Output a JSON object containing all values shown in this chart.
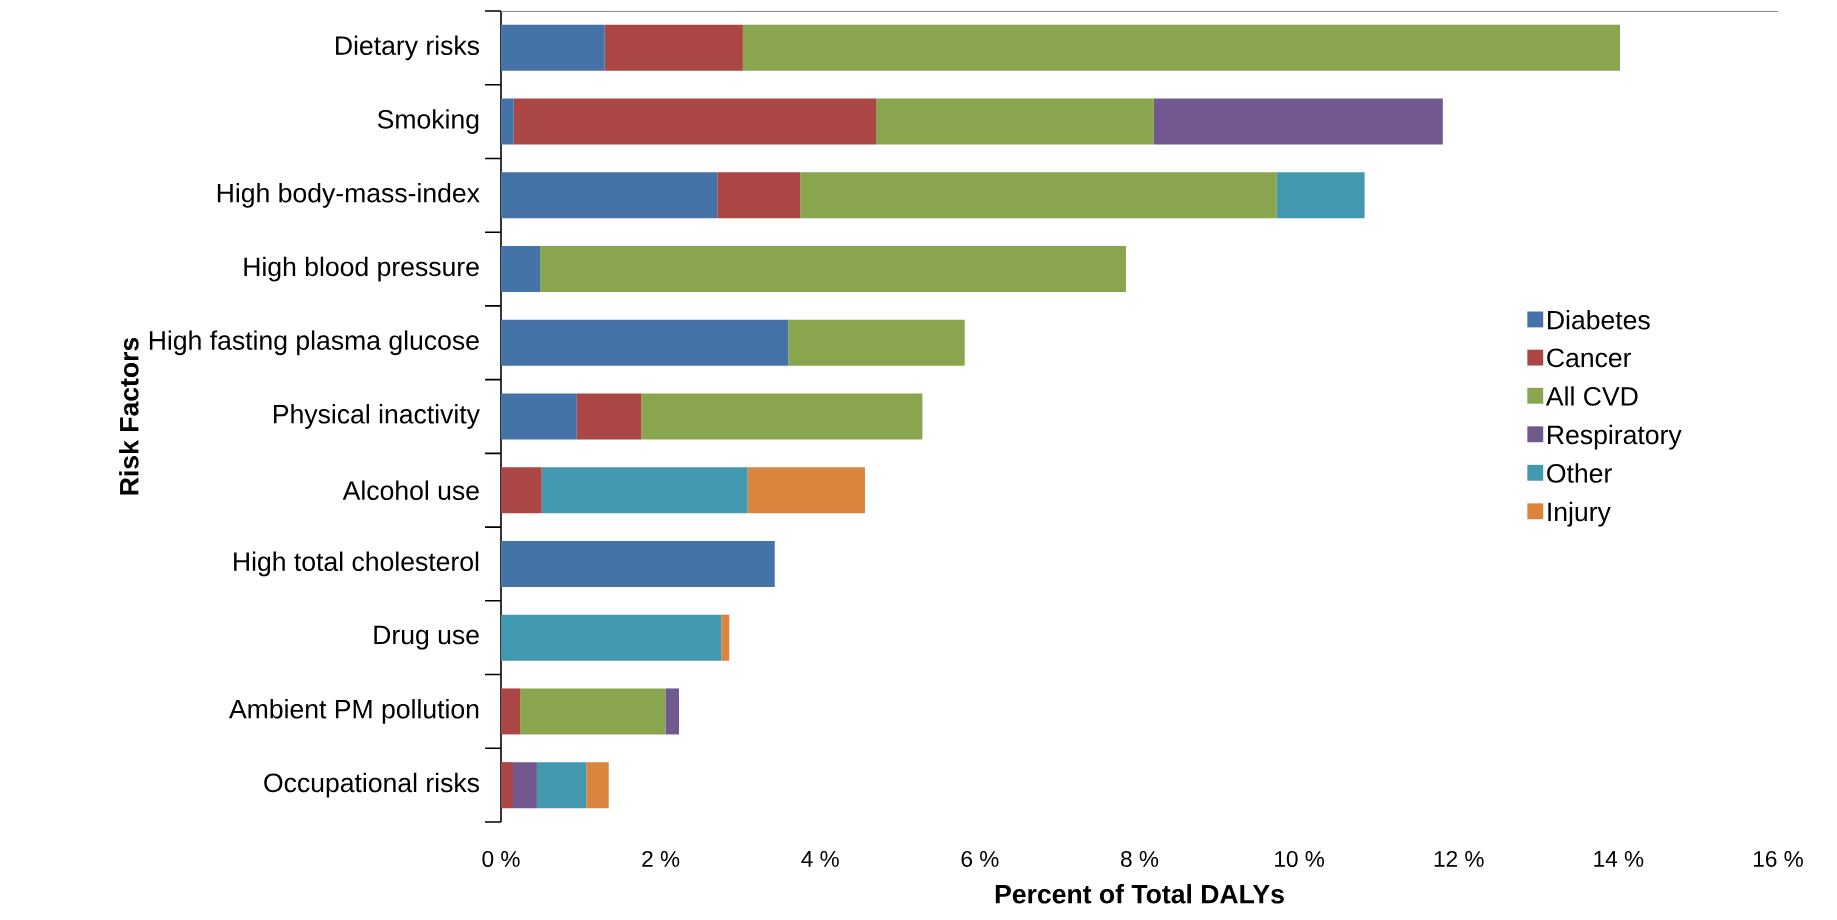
{
  "chart_data": {
    "type": "bar",
    "orientation": "horizontal",
    "stacked": true,
    "categories": [
      "Dietary risks",
      "Smoking",
      "High body-mass-index",
      "High blood pressure",
      "High fasting plasma glucose",
      "Physical inactivity",
      "Alcohol use",
      "High total cholesterol",
      "Drug use",
      "Ambient PM pollution",
      "Occupational risks"
    ],
    "series": [
      {
        "name": "Diabetes",
        "color": "#4572a7",
        "values": [
          1.3,
          0.16,
          2.71,
          0.49,
          3.6,
          0.95,
          0,
          3.43,
          0,
          0,
          0
        ]
      },
      {
        "name": "Cancer",
        "color": "#aa4643",
        "values": [
          1.73,
          4.54,
          1.04,
          0,
          0,
          0.81,
          0.51,
          0,
          0,
          0.24,
          0.15
        ]
      },
      {
        "name": "All CVD",
        "color": "#89a54e",
        "values": [
          10.99,
          3.48,
          5.97,
          7.34,
          2.21,
          3.52,
          0,
          0,
          0,
          1.82,
          0
        ]
      },
      {
        "name": "Respiratory",
        "color": "#71588f",
        "values": [
          0,
          3.62,
          0,
          0,
          0,
          0,
          0,
          0,
          0,
          0.17,
          0.3
        ]
      },
      {
        "name": "Other",
        "color": "#4198af",
        "values": [
          0,
          0,
          1.1,
          0,
          0,
          0,
          2.58,
          0,
          2.76,
          0,
          0.62
        ]
      },
      {
        "name": "Injury",
        "color": "#db843d",
        "values": [
          0,
          0,
          0,
          0,
          0,
          0,
          1.47,
          0,
          0.1,
          0,
          0.28
        ]
      }
    ],
    "xlim": [
      0,
      16
    ],
    "xticks": [
      {
        "value": 0,
        "label": "0 %"
      },
      {
        "value": 2,
        "label": "2 %"
      },
      {
        "value": 4,
        "label": "4 %"
      },
      {
        "value": 6,
        "label": "6 %"
      },
      {
        "value": 8,
        "label": "8 %"
      },
      {
        "value": 10,
        "label": "10 %"
      },
      {
        "value": 12,
        "label": "12 %"
      },
      {
        "value": 14,
        "label": "14 %"
      },
      {
        "value": 16,
        "label": "16 %"
      }
    ],
    "xlabel": "Percent of Total DALYs",
    "ylabel": "Risk Factors",
    "legend": "right",
    "grid": false
  }
}
